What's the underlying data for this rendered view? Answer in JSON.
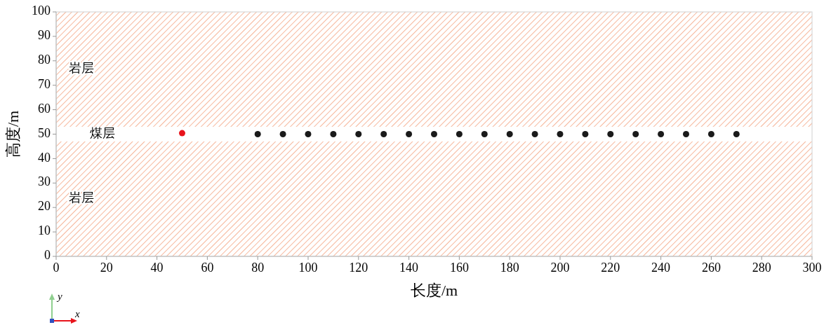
{
  "chart_data": {
    "type": "scatter",
    "xlabel": "长度/m",
    "ylabel": "高度/m",
    "xlim": [
      0,
      300
    ],
    "ylim": [
      0,
      100
    ],
    "xticks": [
      0,
      20,
      40,
      60,
      80,
      100,
      120,
      140,
      160,
      180,
      200,
      220,
      240,
      260,
      280,
      300
    ],
    "yticks": [
      0,
      10,
      20,
      30,
      40,
      50,
      60,
      70,
      80,
      90,
      100
    ],
    "marker": "circle",
    "grid": false,
    "series": [
      {
        "color": "#e8141c",
        "x": [
          50
        ],
        "values": [
          50.4
        ]
      },
      {
        "color": "#1a1a1a",
        "x": [
          80,
          90,
          100,
          110,
          120,
          130,
          140,
          150,
          160,
          170,
          180,
          190,
          200,
          210,
          220,
          230,
          240,
          250,
          260,
          270
        ],
        "values": [
          50,
          50,
          50,
          50,
          50,
          50,
          50,
          50,
          50,
          50,
          50,
          50,
          50,
          50,
          50,
          50,
          50,
          50,
          50,
          50
        ]
      }
    ],
    "bands": [
      {
        "axis": "y",
        "from": 53,
        "to": 100,
        "color": "#f4a582",
        "label": "岩层"
      },
      {
        "axis": "y",
        "from": 0,
        "to": 47,
        "color": "#f4a582",
        "label": "岩层"
      }
    ],
    "annotations": [
      "煤层",
      "y",
      "x"
    ]
  }
}
